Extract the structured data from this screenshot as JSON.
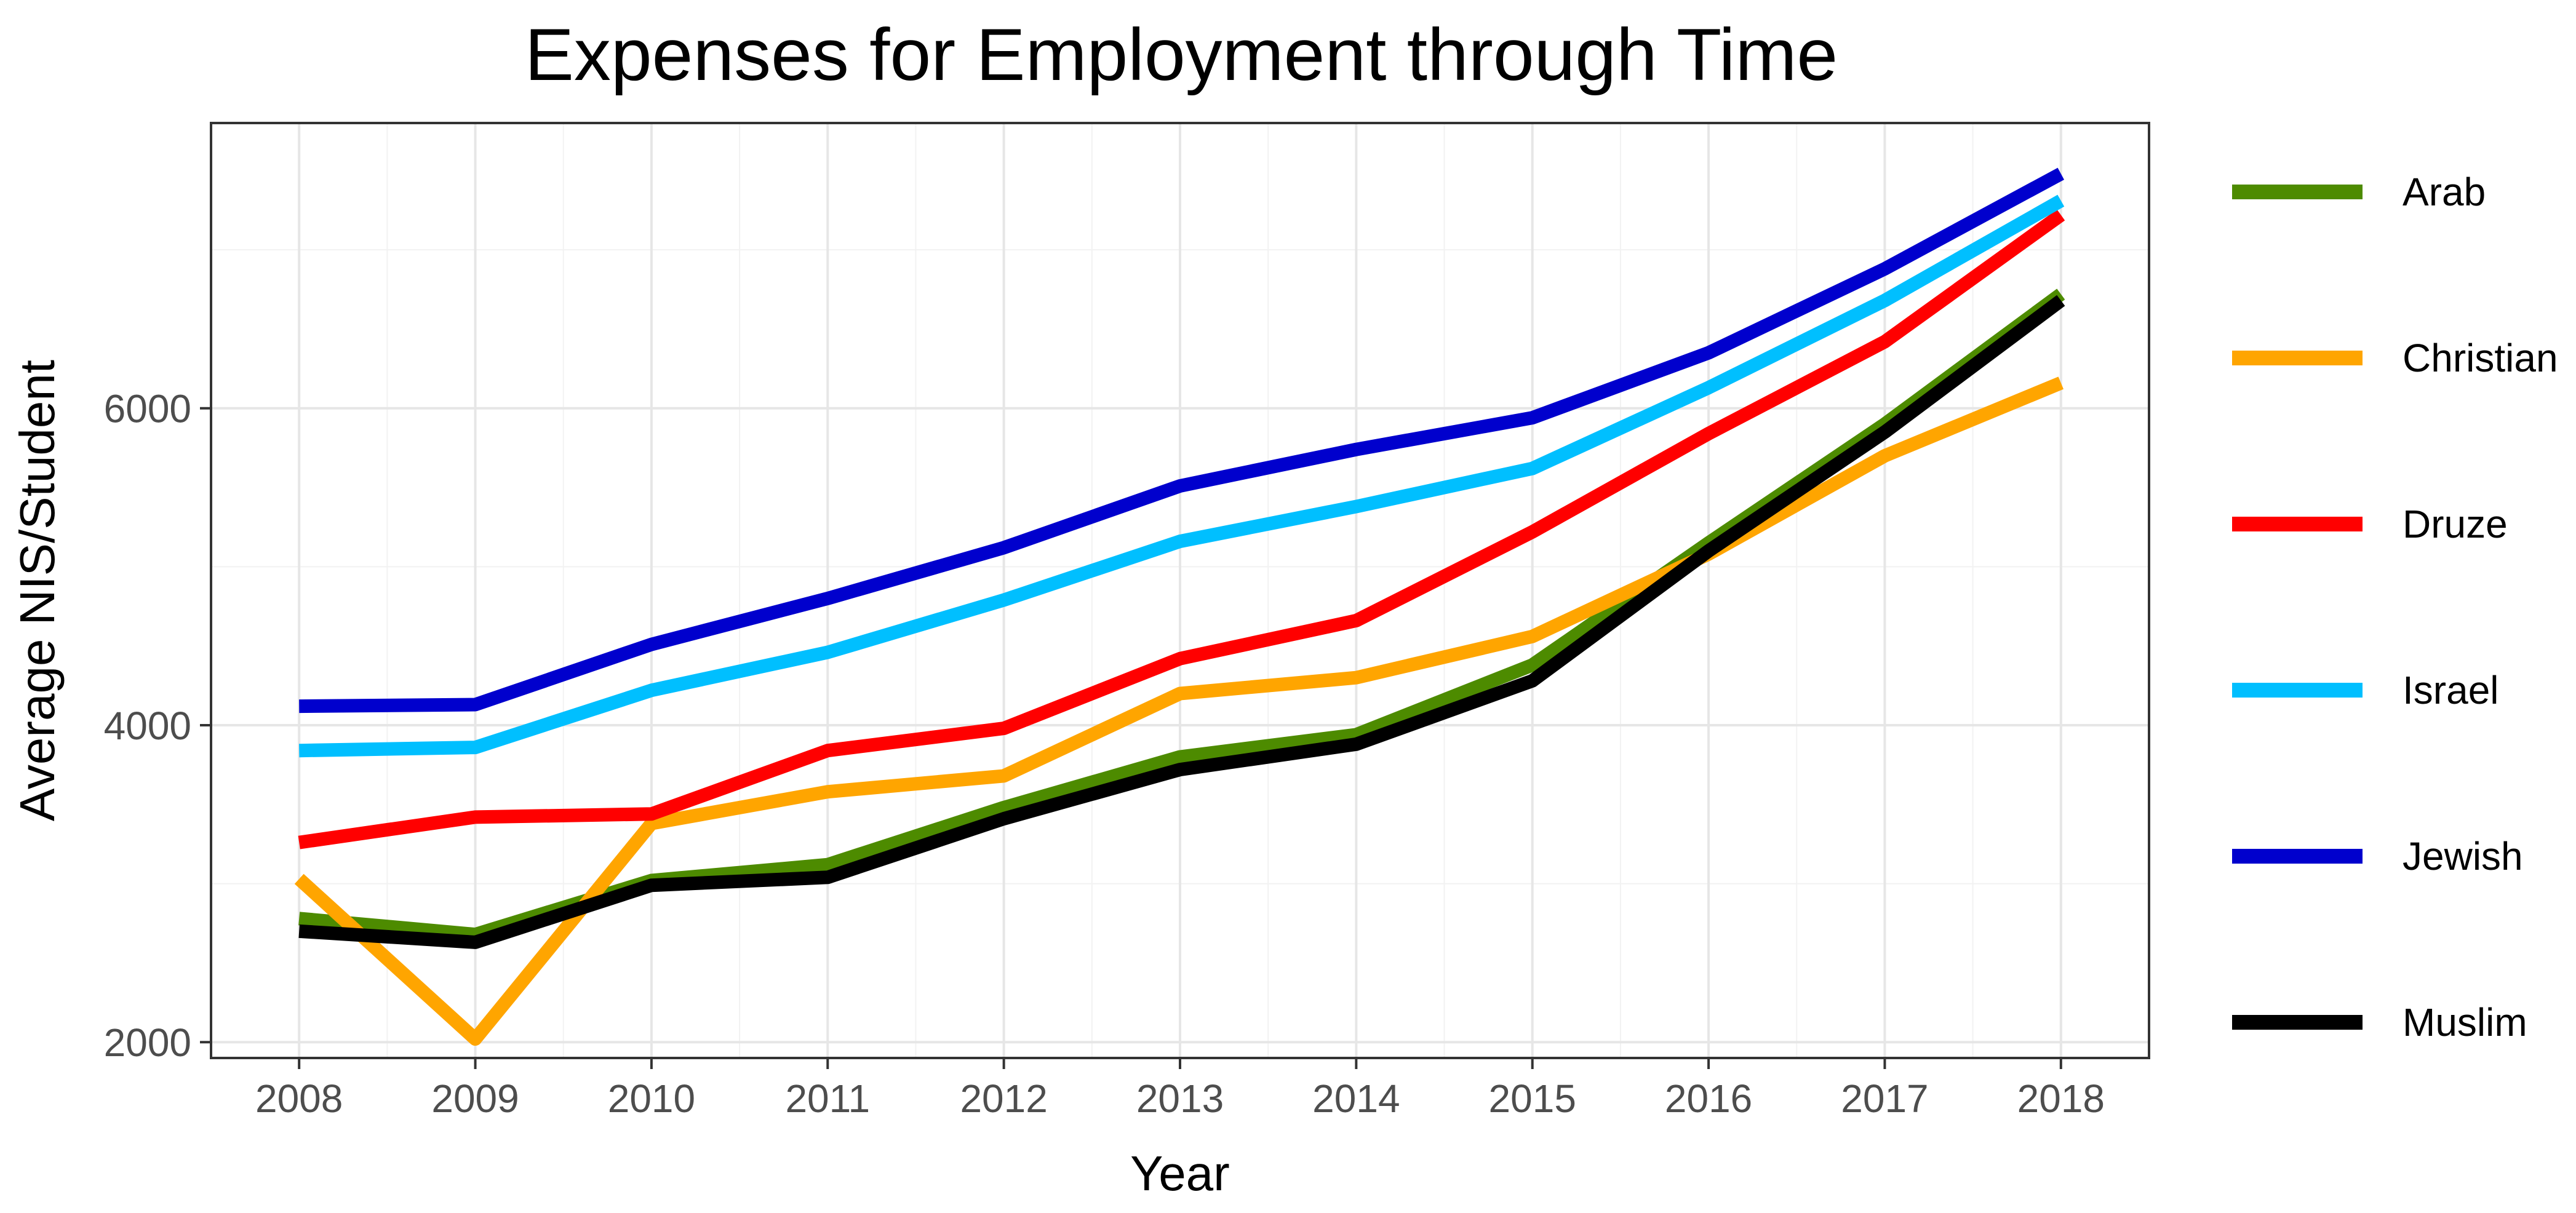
{
  "chart_data": {
    "type": "line",
    "title": "Expenses for Employment through Time",
    "xlabel": "Year",
    "ylabel": "Average NIS/Student",
    "x": [
      2008,
      2009,
      2010,
      2011,
      2012,
      2013,
      2014,
      2015,
      2016,
      2017,
      2018
    ],
    "x_tick_labels": [
      "2008",
      "2009",
      "2010",
      "2011",
      "2012",
      "2013",
      "2014",
      "2015",
      "2016",
      "2017",
      "2018"
    ],
    "y_ticks": [
      2000,
      4000,
      6000
    ],
    "y_tick_labels": [
      "2000",
      "4000",
      "6000"
    ],
    "ylim": [
      1900,
      7800
    ],
    "xlim": [
      2007.5,
      2018.5
    ],
    "grid": true,
    "legend_position": "right",
    "series": [
      {
        "name": "Arab",
        "color": "#4d8b00",
        "values": [
          2780,
          2680,
          3020,
          3120,
          3480,
          3800,
          3940,
          4380,
          5150,
          5900,
          6720
        ]
      },
      {
        "name": "Christian",
        "color": "#ffa500",
        "values": [
          3030,
          2020,
          3380,
          3580,
          3680,
          4200,
          4300,
          4560,
          5080,
          5700,
          6160
        ]
      },
      {
        "name": "Druze",
        "color": "#ff0000",
        "values": [
          3260,
          3420,
          3440,
          3840,
          3980,
          4420,
          4660,
          5220,
          5840,
          6420,
          7220
        ]
      },
      {
        "name": "Israel",
        "color": "#00bfff",
        "values": [
          3840,
          3860,
          4220,
          4460,
          4790,
          5160,
          5380,
          5620,
          6130,
          6680,
          7310
        ]
      },
      {
        "name": "Jewish",
        "color": "#0000cd",
        "values": [
          4120,
          4130,
          4510,
          4800,
          5120,
          5510,
          5740,
          5940,
          6350,
          6880,
          7480
        ]
      },
      {
        "name": "Muslim",
        "color": "#000000",
        "values": [
          2700,
          2630,
          2990,
          3040,
          3410,
          3720,
          3880,
          4280,
          5100,
          5850,
          6680
        ]
      }
    ]
  }
}
